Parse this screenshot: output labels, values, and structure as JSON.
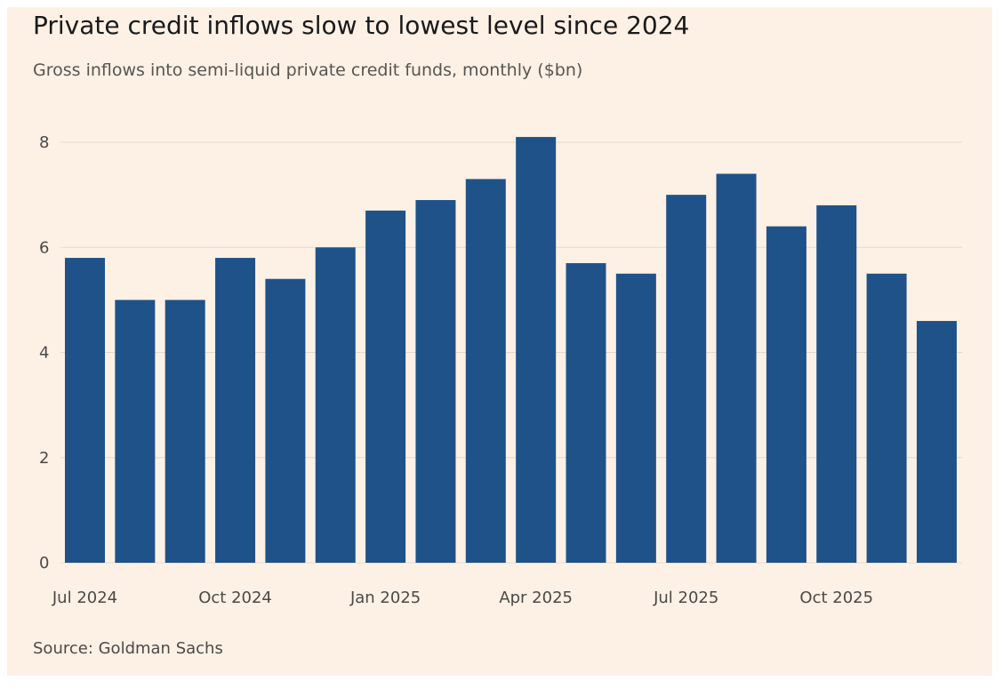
{
  "title": "Private credit inflows slow to lowest level since 2024",
  "subtitle": "Gross inflows into semi-liquid private credit funds, monthly ($bn)",
  "source": "Source: Goldman Sachs",
  "colors": {
    "background": "#fdf1e6",
    "bar": "#1f5289",
    "grid": "#e6d9cd"
  },
  "chart_data": {
    "type": "bar",
    "title": "Private credit inflows slow to lowest level since 2024",
    "xlabel": "",
    "ylabel": "",
    "ylim": [
      0,
      8.4
    ],
    "grid": true,
    "categories": [
      "Jul 2024",
      "Aug 2024",
      "Sep 2024",
      "Oct 2024",
      "Nov 2024",
      "Dec 2024",
      "Jan 2025",
      "Feb 2025",
      "Mar 2025",
      "Apr 2025",
      "May 2025",
      "Jun 2025",
      "Jul 2025",
      "Aug 2025",
      "Sep 2025",
      "Oct 2025",
      "Nov 2025",
      "Dec 2025"
    ],
    "values": [
      5.8,
      5.0,
      5.0,
      5.8,
      5.4,
      6.0,
      6.7,
      6.9,
      7.3,
      8.1,
      5.7,
      5.5,
      7.0,
      7.4,
      6.4,
      6.8,
      5.5,
      4.6
    ],
    "y_ticks": [
      0,
      2,
      4,
      6,
      8
    ],
    "x_ticks": [
      {
        "index": 0,
        "label": "Jul 2024"
      },
      {
        "index": 3,
        "label": "Oct 2024"
      },
      {
        "index": 6,
        "label": "Jan 2025"
      },
      {
        "index": 9,
        "label": "Apr 2025"
      },
      {
        "index": 12,
        "label": "Jul 2025"
      },
      {
        "index": 15,
        "label": "Oct 2025"
      }
    ]
  }
}
